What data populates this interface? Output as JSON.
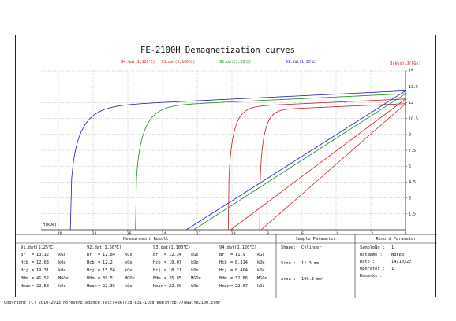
{
  "chart_data": {
    "type": "line",
    "title": "FE-2100H Demagnetization curves",
    "xlabel": "H(kOe)",
    "ylabel": "B(kGs),J(kGs)",
    "xlim": [
      -21,
      0
    ],
    "ylim": [
      0,
      15
    ],
    "xticks": [
      "-20",
      "-18",
      "-16",
      "-14",
      "-12",
      "-10",
      "-8",
      "-6",
      "-4",
      "-2",
      "0"
    ],
    "yticks": [
      "1.5",
      "3",
      "4.5",
      "6",
      "7.5",
      "9",
      "10.5",
      "12",
      "13.5",
      "15"
    ],
    "grid": true,
    "legend_position": "top",
    "series": [
      {
        "name": "94.dat(1,120℃)",
        "color": "#c42020",
        "Br": 11.9,
        "Hcb": 8.314,
        "Hcj": 8.404
      },
      {
        "name": "93.dat(1,100℃)",
        "color": "#c42020",
        "Br": 12.34,
        "Hcb": 10.07,
        "Hcj": 10.21
      },
      {
        "name": "92.dat(1,50℃)",
        "color": "#1a8a1a",
        "Br": 12.84,
        "Hcb": 12.2,
        "Hcj": 15.56
      },
      {
        "name": "91.dat(1,25℃)",
        "color": "#1c1cb8",
        "Br": 13.12,
        "Hcb": 12.63,
        "Hcj": 19.31
      }
    ]
  },
  "results": {
    "measurement_header": "Measurement Result",
    "sample_header": "Sample Parameter",
    "record_header": "Record Parameter",
    "columns": [
      {
        "title": "91.dat(1,25℃)",
        "rows": [
          [
            "Br",
            "=",
            "13.12",
            "kGs"
          ],
          [
            "Hcb",
            "=",
            "12.63",
            "kOe"
          ],
          [
            "Hcj",
            "=",
            "19.31",
            "kOe"
          ],
          [
            "BHm",
            "=",
            "41.52",
            "MGOe"
          ],
          [
            "Hmax",
            "=",
            "22.58",
            "kOe"
          ]
        ]
      },
      {
        "title": "92.dat(1,50℃)",
        "rows": [
          [
            "Br",
            "=",
            "12.84",
            "kGs"
          ],
          [
            "Hcb",
            "=",
            "12.2",
            "kOe"
          ],
          [
            "Hcj",
            "=",
            "15.56",
            "kOe"
          ],
          [
            "BHm",
            "=",
            "39.51",
            "MGOe"
          ],
          [
            "Hmax",
            "=",
            "22.36",
            "kOe"
          ]
        ]
      },
      {
        "title": "93.dat(1,100℃)",
        "rows": [
          [
            "Br",
            "=",
            "12.34",
            "kGs"
          ],
          [
            "Hcb",
            "=",
            "10.07",
            "kOe"
          ],
          [
            "Hcj",
            "=",
            "10.21",
            "kOe"
          ],
          [
            "BHm",
            "=",
            "35.85",
            "MGOe"
          ],
          [
            "Hmax",
            "=",
            "22.09",
            "kOe"
          ]
        ]
      },
      {
        "title": "94.dat(1,120℃)",
        "rows": [
          [
            "Br",
            "=",
            "11.9",
            "kGs"
          ],
          [
            "Hcb",
            "=",
            "8.314",
            "kOe"
          ],
          [
            "Hcj",
            "=",
            "8.404",
            "kOe"
          ],
          [
            "BHm",
            "=",
            "32.86",
            "MGOe"
          ],
          [
            "Hmax",
            "=",
            "22.07",
            "kOe"
          ]
        ]
      }
    ],
    "sample": [
      [
        "Shape:",
        "Cylinder"
      ],
      [
        "Size :",
        "11.3 mm"
      ],
      [
        "Area :",
        "100.3 mm²"
      ]
    ],
    "record": [
      [
        "SampleNo :",
        "1"
      ],
      [
        "MatName :",
        "NdFeB"
      ],
      [
        "Date :",
        "14/10/27"
      ],
      [
        "Operator :",
        "1"
      ],
      [
        "Remarks :",
        ""
      ]
    ]
  },
  "copyright": "Copyright (C) 2010-2013 ForeverElegance  Tel:(+86)738-831-1168  Web:http://www.fe2100.com/"
}
